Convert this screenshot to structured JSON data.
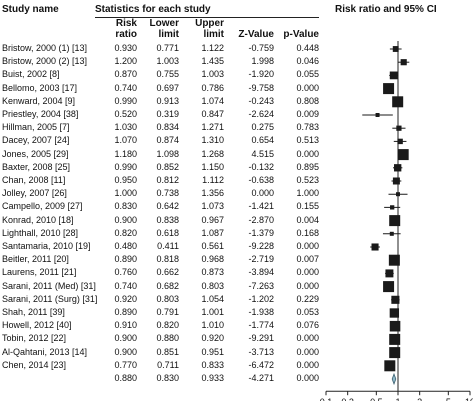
{
  "headers": {
    "study": "Study name",
    "stats": "Statistics for each study",
    "ratio": "Risk ratio and 95% CI",
    "risk_ratio": [
      "Risk",
      "ratio"
    ],
    "lower": [
      "Lower",
      "limit"
    ],
    "upper": [
      "Upper",
      "limit"
    ],
    "z": "Z-Value",
    "p": "p-Value"
  },
  "rows": [
    {
      "study": "Bristow, 2000 (1) [13]",
      "rr": "0.930",
      "lower": "0.771",
      "upper": "1.122",
      "z": "-0.759",
      "p": "0.448"
    },
    {
      "study": "Bristow, 2000 (2) [13]",
      "rr": "1.200",
      "lower": "1.003",
      "upper": "1.435",
      "z": "1.998",
      "p": "0.046"
    },
    {
      "study": "Buist, 2002 [8]",
      "rr": "0.870",
      "lower": "0.755",
      "upper": "1.003",
      "z": "-1.920",
      "p": "0.055"
    },
    {
      "study": "Bellomo, 2003 [17]",
      "rr": "0.740",
      "lower": "0.697",
      "upper": "0.786",
      "z": "-9.758",
      "p": "0.000"
    },
    {
      "study": "Kenward, 2004 [9]",
      "rr": "0.990",
      "lower": "0.913",
      "upper": "1.074",
      "z": "-0.243",
      "p": "0.808"
    },
    {
      "study": "Priestley, 2004 [38]",
      "rr": "0.520",
      "lower": "0.319",
      "upper": "0.847",
      "z": "-2.624",
      "p": "0.009"
    },
    {
      "study": "Hillman, 2005 [7]",
      "rr": "1.030",
      "lower": "0.834",
      "upper": "1.271",
      "z": "0.275",
      "p": "0.783"
    },
    {
      "study": "Dacey, 2007 [24]",
      "rr": "1.070",
      "lower": "0.874",
      "upper": "1.310",
      "z": "0.654",
      "p": "0.513"
    },
    {
      "study": "Jones, 2005 [29]",
      "rr": "1.180",
      "lower": "1.098",
      "upper": "1.268",
      "z": "4.515",
      "p": "0.000"
    },
    {
      "study": "Baxter, 2008 [25]",
      "rr": "0.990",
      "lower": "0.852",
      "upper": "1.150",
      "z": "-0.132",
      "p": "0.895"
    },
    {
      "study": "Chan, 2008 [11]",
      "rr": "0.950",
      "lower": "0.812",
      "upper": "1.112",
      "z": "-0.638",
      "p": "0.523"
    },
    {
      "study": "Jolley, 2007 [26]",
      "rr": "1.000",
      "lower": "0.738",
      "upper": "1.356",
      "z": "0.000",
      "p": "1.000"
    },
    {
      "study": "Campello, 2009 [27]",
      "rr": "0.830",
      "lower": "0.642",
      "upper": "1.073",
      "z": "-1.421",
      "p": "0.155"
    },
    {
      "study": "Konrad, 2010 [18]",
      "rr": "0.900",
      "lower": "0.838",
      "upper": "0.967",
      "z": "-2.870",
      "p": "0.004"
    },
    {
      "study": "Lighthall, 2010 [28]",
      "rr": "0.820",
      "lower": "0.618",
      "upper": "1.087",
      "z": "-1.379",
      "p": "0.168"
    },
    {
      "study": "Santamaria, 2010 [19]",
      "rr": "0.480",
      "lower": "0.411",
      "upper": "0.561",
      "z": "-9.228",
      "p": "0.000"
    },
    {
      "study": "Beitler, 2011 [20]",
      "rr": "0.890",
      "lower": "0.818",
      "upper": "0.968",
      "z": "-2.719",
      "p": "0.007"
    },
    {
      "study": "Laurens, 2011 [21]",
      "rr": "0.760",
      "lower": "0.662",
      "upper": "0.873",
      "z": "-3.894",
      "p": "0.000"
    },
    {
      "study": "Sarani, 2011 (Med) [31]",
      "rr": "0.740",
      "lower": "0.682",
      "upper": "0.803",
      "z": "-7.263",
      "p": "0.000"
    },
    {
      "study": "Sarani, 2011 (Surg) [31]",
      "rr": "0.920",
      "lower": "0.803",
      "upper": "1.054",
      "z": "-1.202",
      "p": "0.229"
    },
    {
      "study": "Shah, 2011 [39]",
      "rr": "0.890",
      "lower": "0.791",
      "upper": "1.001",
      "z": "-1.938",
      "p": "0.053"
    },
    {
      "study": "Howell, 2012 [40]",
      "rr": "0.910",
      "lower": "0.820",
      "upper": "1.010",
      "z": "-1.774",
      "p": "0.076"
    },
    {
      "study": "Tobin, 2012 [22]",
      "rr": "0.900",
      "lower": "0.880",
      "upper": "0.920",
      "z": "-9.291",
      "p": "0.000"
    },
    {
      "study": "Al-Qahtani, 2013 [14]",
      "rr": "0.900",
      "lower": "0.851",
      "upper": "0.951",
      "z": "-3.713",
      "p": "0.000"
    },
    {
      "study": "Chen, 2014 [23]",
      "rr": "0.770",
      "lower": "0.711",
      "upper": "0.833",
      "z": "-6.472",
      "p": "0.000"
    }
  ],
  "summary": {
    "study": "",
    "rr": "0.880",
    "lower": "0.830",
    "upper": "0.933",
    "z": "-4.271",
    "p": "0.000"
  },
  "chart_data": {
    "type": "forest",
    "title": "Risk ratio and 95% CI",
    "xscale": "log",
    "xlim": [
      0.1,
      10
    ],
    "xticks": [
      0.1,
      0.2,
      0.5,
      1,
      2,
      5,
      10
    ],
    "xtick_labels": [
      "0.1",
      "0.2",
      "0.5",
      "1",
      "2",
      "5",
      "10"
    ],
    "reference_line": 1,
    "studies": [
      {
        "name": "Bristow, 2000 (1) [13]",
        "rr": 0.93,
        "lower": 0.771,
        "upper": 1.122
      },
      {
        "name": "Bristow, 2000 (2) [13]",
        "rr": 1.2,
        "lower": 1.003,
        "upper": 1.435
      },
      {
        "name": "Buist, 2002 [8]",
        "rr": 0.87,
        "lower": 0.755,
        "upper": 1.003
      },
      {
        "name": "Bellomo, 2003 [17]",
        "rr": 0.74,
        "lower": 0.697,
        "upper": 0.786
      },
      {
        "name": "Kenward, 2004 [9]",
        "rr": 0.99,
        "lower": 0.913,
        "upper": 1.074
      },
      {
        "name": "Priestley, 2004 [38]",
        "rr": 0.52,
        "lower": 0.319,
        "upper": 0.847
      },
      {
        "name": "Hillman, 2005 [7]",
        "rr": 1.03,
        "lower": 0.834,
        "upper": 1.271
      },
      {
        "name": "Dacey, 2007 [24]",
        "rr": 1.07,
        "lower": 0.874,
        "upper": 1.31
      },
      {
        "name": "Jones, 2005 [29]",
        "rr": 1.18,
        "lower": 1.098,
        "upper": 1.268
      },
      {
        "name": "Baxter, 2008 [25]",
        "rr": 0.99,
        "lower": 0.852,
        "upper": 1.15
      },
      {
        "name": "Chan, 2008 [11]",
        "rr": 0.95,
        "lower": 0.812,
        "upper": 1.112
      },
      {
        "name": "Jolley, 2007 [26]",
        "rr": 1.0,
        "lower": 0.738,
        "upper": 1.356
      },
      {
        "name": "Campello, 2009 [27]",
        "rr": 0.83,
        "lower": 0.642,
        "upper": 1.073
      },
      {
        "name": "Konrad, 2010 [18]",
        "rr": 0.9,
        "lower": 0.838,
        "upper": 0.967
      },
      {
        "name": "Lighthall, 2010 [28]",
        "rr": 0.82,
        "lower": 0.618,
        "upper": 1.087
      },
      {
        "name": "Santamaria, 2010 [19]",
        "rr": 0.48,
        "lower": 0.411,
        "upper": 0.561
      },
      {
        "name": "Beitler, 2011 [20]",
        "rr": 0.89,
        "lower": 0.818,
        "upper": 0.968
      },
      {
        "name": "Laurens, 2011 [21]",
        "rr": 0.76,
        "lower": 0.662,
        "upper": 0.873
      },
      {
        "name": "Sarani, 2011 (Med) [31]",
        "rr": 0.74,
        "lower": 0.682,
        "upper": 0.803
      },
      {
        "name": "Sarani, 2011 (Surg) [31]",
        "rr": 0.92,
        "lower": 0.803,
        "upper": 1.054
      },
      {
        "name": "Shah, 2011 [39]",
        "rr": 0.89,
        "lower": 0.791,
        "upper": 1.001
      },
      {
        "name": "Howell, 2012 [40]",
        "rr": 0.91,
        "lower": 0.82,
        "upper": 1.01
      },
      {
        "name": "Tobin, 2012 [22]",
        "rr": 0.9,
        "lower": 0.88,
        "upper": 0.92
      },
      {
        "name": "Al-Qahtani, 2013 [14]",
        "rr": 0.9,
        "lower": 0.851,
        "upper": 0.951
      },
      {
        "name": "Chen, 2014 [23]",
        "rr": 0.77,
        "lower": 0.711,
        "upper": 0.833
      }
    ],
    "pooled": {
      "rr": 0.88,
      "lower": 0.83,
      "upper": 0.933
    },
    "colors": {
      "marker": "#1a1a1a",
      "line": "#1a1a1a",
      "diamond": "#8fb8c9",
      "diamond_stroke": "#3b5f6e"
    }
  }
}
